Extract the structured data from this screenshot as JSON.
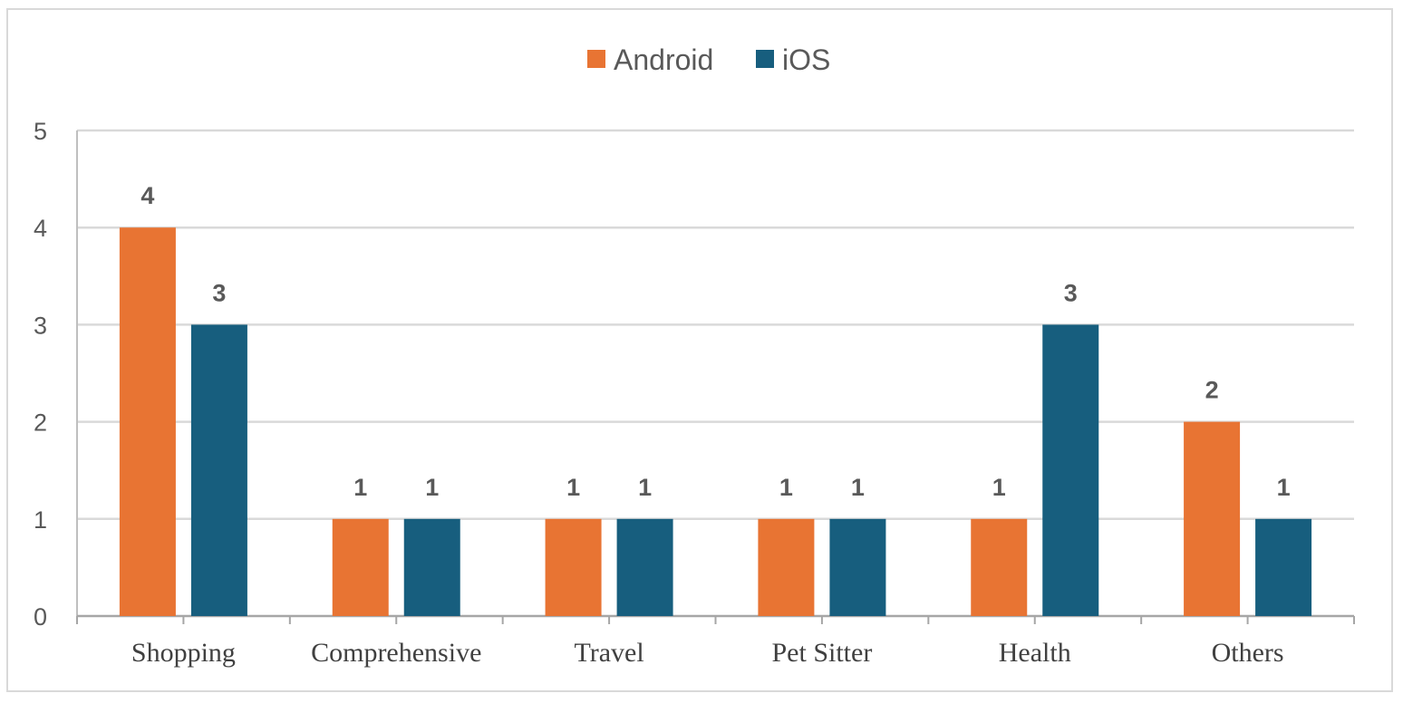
{
  "chart_data": {
    "type": "bar",
    "categories": [
      "Shopping",
      "Comprehensive",
      "Travel",
      "Pet Sitter",
      "Health",
      "Others"
    ],
    "series": [
      {
        "name": "Android",
        "color": "#e87433",
        "values": [
          4,
          1,
          1,
          1,
          1,
          2
        ]
      },
      {
        "name": "iOS",
        "color": "#175e7e",
        "values": [
          3,
          1,
          1,
          1,
          3,
          1
        ]
      }
    ],
    "ylim": [
      0,
      5
    ],
    "yticks": [
      0,
      1,
      2,
      3,
      4,
      5
    ],
    "grid": true,
    "legend_position": "top-center",
    "data_labels": true,
    "title": "",
    "xlabel": "",
    "ylabel": ""
  }
}
